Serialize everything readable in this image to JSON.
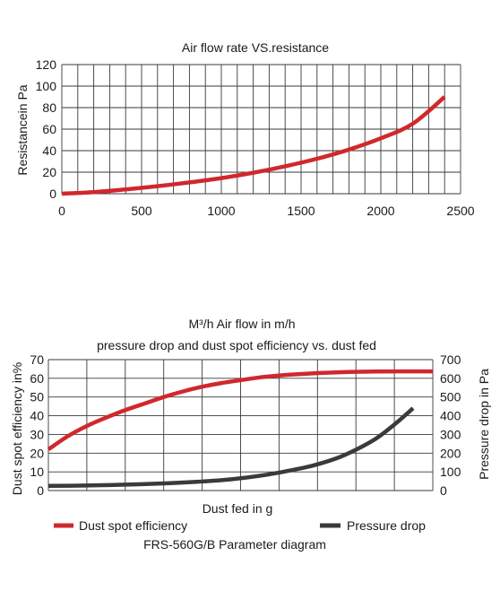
{
  "chart_data": [
    {
      "type": "line",
      "title": "Air flow rate VS.resistance",
      "xlabel": "",
      "ylabel": "Resistancein Pa",
      "xlim": [
        0,
        2500
      ],
      "ylim": [
        0,
        120
      ],
      "xticks": [
        0,
        500,
        1000,
        1500,
        2000,
        2500
      ],
      "yticks": [
        0,
        20,
        40,
        60,
        80,
        100,
        120
      ],
      "grid": true,
      "series": [
        {
          "color": "#d0282d",
          "x": [
            0,
            200,
            400,
            600,
            800,
            1000,
            1200,
            1400,
            1600,
            1800,
            2000,
            2200,
            2400
          ],
          "y": [
            0,
            1.5,
            4,
            7,
            10.5,
            14.5,
            19.5,
            25.5,
            32.5,
            41,
            51.5,
            65,
            90
          ]
        }
      ]
    },
    {
      "type": "line",
      "title_lines": [
        "M³/h  Air flow in m/h",
        "pressure drop and dust spot efficiency vs. dust fed"
      ],
      "xlabel": "Dust fed in g",
      "ylabel_left": "Dust spot efficiency in%",
      "ylabel_right": "Pressure drop in Pa",
      "ylim_left": [
        0,
        70
      ],
      "ylim_right": [
        0,
        700
      ],
      "yticks_left": [
        0,
        10,
        20,
        30,
        40,
        50,
        60,
        70
      ],
      "yticks_right": [
        0,
        100,
        200,
        300,
        400,
        500,
        600,
        700
      ],
      "xlim": [
        0,
        1
      ],
      "grid": true,
      "legend_position": "bottom",
      "footer": "FRS-560G/B Parameter diagram",
      "series": [
        {
          "name": "Dust spot efficiency",
          "axis": "left",
          "color": "#d0282d",
          "x": [
            0,
            0.05,
            0.1,
            0.15,
            0.2,
            0.25,
            0.3,
            0.35,
            0.4,
            0.45,
            0.5,
            0.55,
            0.6,
            0.65,
            0.7,
            0.75,
            0.8,
            0.85,
            0.9,
            0.95,
            1.0
          ],
          "y": [
            22,
            29,
            34.5,
            39,
            43,
            46.5,
            50,
            53,
            55.5,
            57.5,
            59,
            60.5,
            61.5,
            62.2,
            62.8,
            63.2,
            63.5,
            63.6,
            63.7,
            63.7,
            63.7
          ]
        },
        {
          "name": "Pressure drop",
          "axis": "right",
          "color": "#3a3a3a",
          "x": [
            0,
            0.1,
            0.2,
            0.3,
            0.4,
            0.5,
            0.6,
            0.7,
            0.75,
            0.8,
            0.85,
            0.9,
            0.95,
            1.0
          ],
          "y": [
            25,
            27,
            31,
            37,
            46,
            60,
            85,
            122,
            147,
            180,
            225,
            280,
            355,
            440
          ]
        }
      ]
    }
  ]
}
